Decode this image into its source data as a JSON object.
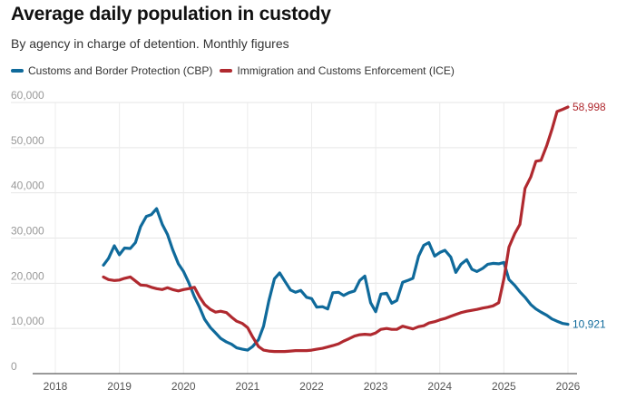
{
  "chart_data": {
    "type": "line",
    "title": "Average daily population in custody",
    "subtitle": "By agency in charge of detention. Monthly figures",
    "xlabel": "",
    "ylabel": "",
    "ylim": [
      0,
      60000
    ],
    "xlim": [
      2018,
      2026
    ],
    "grid": true,
    "legend_position": "top-left",
    "yticks": [
      0,
      10000,
      20000,
      30000,
      40000,
      50000,
      60000
    ],
    "ytick_labels": [
      "0",
      "10,000",
      "20,000",
      "30,000",
      "40,000",
      "50,000",
      "60,000"
    ],
    "xticks": [
      2018,
      2019,
      2020,
      2021,
      2022,
      2023,
      2024,
      2025,
      2026
    ],
    "xtick_labels": [
      "2018",
      "2019",
      "2020",
      "2021",
      "2022",
      "2023",
      "2024",
      "2025",
      "2026"
    ],
    "series": [
      {
        "name": "Customs and Border Protection (CBP)",
        "color": "#0f6a9b",
        "end_label": "10,921",
        "x": [
          2018.75,
          2018.83,
          2018.92,
          2019.0,
          2019.08,
          2019.17,
          2019.25,
          2019.33,
          2019.42,
          2019.5,
          2019.58,
          2019.67,
          2019.75,
          2019.83,
          2019.92,
          2020.0,
          2020.08,
          2020.17,
          2020.25,
          2020.33,
          2020.42,
          2020.5,
          2020.58,
          2020.67,
          2020.75,
          2020.83,
          2020.92,
          2021.0,
          2021.08,
          2021.17,
          2021.25,
          2021.33,
          2021.42,
          2021.5,
          2021.58,
          2021.67,
          2021.75,
          2021.83,
          2021.92,
          2022.0,
          2022.08,
          2022.17,
          2022.25,
          2022.33,
          2022.42,
          2022.5,
          2022.58,
          2022.67,
          2022.75,
          2022.83,
          2022.92,
          2023.0,
          2023.08,
          2023.17,
          2023.25,
          2023.33,
          2023.42,
          2023.5,
          2023.58,
          2023.67,
          2023.75,
          2023.83,
          2023.92,
          2024.0,
          2024.08,
          2024.17,
          2024.25,
          2024.33,
          2024.42,
          2024.5,
          2024.58,
          2024.67,
          2024.75,
          2024.83,
          2024.92,
          2025.0,
          2025.08,
          2025.17,
          2025.25,
          2025.33,
          2025.42,
          2025.5,
          2025.58,
          2025.67,
          2025.75,
          2025.83,
          2025.92,
          2026.0
        ],
        "values": [
          24000,
          25500,
          28300,
          26300,
          27800,
          27700,
          29000,
          32500,
          34800,
          35200,
          36500,
          33000,
          30800,
          27500,
          24300,
          22600,
          20200,
          17000,
          14700,
          12000,
          10200,
          9000,
          7800,
          7000,
          6500,
          5700,
          5400,
          5200,
          6000,
          7500,
          10500,
          16000,
          21000,
          22300,
          20500,
          18500,
          18000,
          18400,
          16900,
          16600,
          14700,
          14800,
          14300,
          17900,
          18000,
          17300,
          17900,
          18300,
          20600,
          21600,
          15700,
          13700,
          17600,
          17800,
          15600,
          16200,
          20200,
          20600,
          21100,
          26000,
          28400,
          29000,
          26000,
          26800,
          27300,
          25800,
          22400,
          24200,
          25200,
          23100,
          22600,
          23300,
          24200,
          24400,
          24300,
          24600,
          20800,
          19500,
          18100,
          16900,
          15300,
          14300,
          13600,
          12900,
          12100,
          11600,
          11100,
          10921
        ]
      },
      {
        "name": "Immigration and Customs Enforcement (ICE)",
        "color": "#b0292f",
        "end_label": "58,998",
        "x": [
          2018.75,
          2018.83,
          2018.92,
          2019.0,
          2019.08,
          2019.17,
          2019.25,
          2019.33,
          2019.42,
          2019.5,
          2019.58,
          2019.67,
          2019.75,
          2019.83,
          2019.92,
          2020.0,
          2020.08,
          2020.17,
          2020.25,
          2020.33,
          2020.42,
          2020.5,
          2020.58,
          2020.67,
          2020.75,
          2020.83,
          2020.92,
          2021.0,
          2021.08,
          2021.17,
          2021.25,
          2021.33,
          2021.42,
          2021.5,
          2021.58,
          2021.67,
          2021.75,
          2021.83,
          2021.92,
          2022.0,
          2022.08,
          2022.17,
          2022.25,
          2022.33,
          2022.42,
          2022.5,
          2022.58,
          2022.67,
          2022.75,
          2022.83,
          2022.92,
          2023.0,
          2023.08,
          2023.17,
          2023.25,
          2023.33,
          2023.42,
          2023.5,
          2023.58,
          2023.67,
          2023.75,
          2023.83,
          2023.92,
          2024.0,
          2024.08,
          2024.17,
          2024.25,
          2024.33,
          2024.42,
          2024.5,
          2024.58,
          2024.67,
          2024.75,
          2024.83,
          2024.92,
          2025.0,
          2025.08,
          2025.17,
          2025.25,
          2025.33,
          2025.42,
          2025.5,
          2025.58,
          2025.67,
          2025.75,
          2025.83,
          2025.92,
          2026.0
        ],
        "values": [
          21400,
          20800,
          20600,
          20700,
          21100,
          21400,
          20500,
          19600,
          19500,
          19100,
          18800,
          18600,
          19000,
          18600,
          18300,
          18600,
          18800,
          19100,
          17000,
          15300,
          14200,
          13600,
          13800,
          13500,
          12500,
          11600,
          11100,
          10200,
          8100,
          6000,
          5200,
          5000,
          4900,
          4900,
          4900,
          5000,
          5100,
          5100,
          5100,
          5200,
          5400,
          5600,
          5900,
          6200,
          6600,
          7200,
          7700,
          8300,
          8600,
          8700,
          8600,
          9000,
          9800,
          10000,
          9800,
          9800,
          10500,
          10200,
          9900,
          10400,
          10600,
          11200,
          11500,
          11900,
          12200,
          12700,
          13100,
          13500,
          13800,
          14000,
          14200,
          14500,
          14700,
          15000,
          15700,
          21000,
          28000,
          31000,
          33000,
          41000,
          43500,
          47000,
          47200,
          50500,
          54000,
          58000,
          58500,
          58998
        ]
      }
    ]
  }
}
